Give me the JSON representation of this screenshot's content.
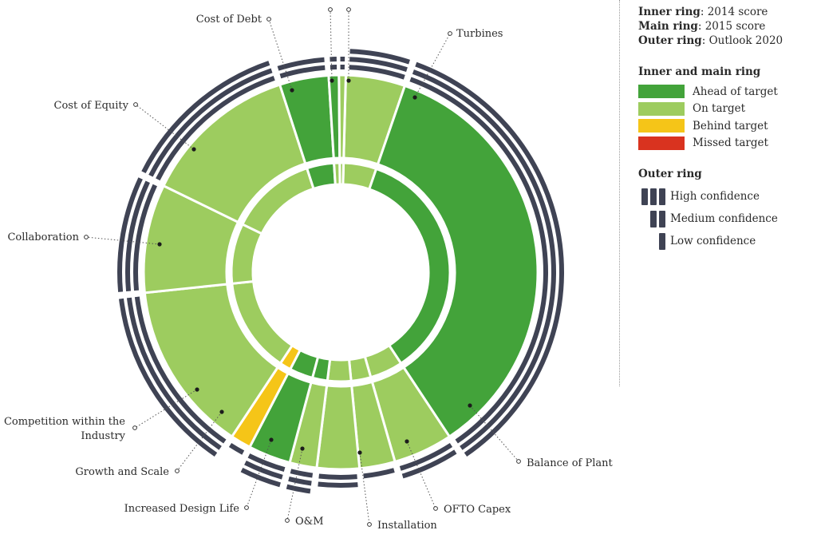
{
  "legend": {
    "ring_keys": [
      {
        "key": "Inner ring",
        "value": "2014 score"
      },
      {
        "key": "Main ring",
        "value": "2015 score"
      },
      {
        "key": "Outer ring",
        "value": "Outlook 2020"
      }
    ],
    "status_heading": "Inner and main ring",
    "status_items": [
      {
        "label": "Ahead of target",
        "color": "#43a33a"
      },
      {
        "label": "On target",
        "color": "#9dcc5f"
      },
      {
        "label": "Behind target",
        "color": "#f5c518"
      },
      {
        "label": "Missed target",
        "color": "#d9331f"
      }
    ],
    "confidence_heading": "Outer ring",
    "confidence_items": [
      {
        "label": "High confidence",
        "bars": 3
      },
      {
        "label": "Medium confidence",
        "bars": 2
      },
      {
        "label": "Low confidence",
        "bars": 1
      }
    ]
  },
  "chart_data": {
    "type": "pie",
    "variant": "three-ring sunburst",
    "orientation": "clockwise from top",
    "colors": {
      "ahead": "#43a33a",
      "on": "#9dcc5f",
      "behind": "#f5c518",
      "missed": "#d9331f",
      "confidence_bar": "#3f4354"
    },
    "segments": [
      {
        "label": "",
        "start_deg": 1.5,
        "end_deg": 19.0,
        "score_2014": "on",
        "score_2015": "on",
        "outlook_2020": 3
      },
      {
        "label": "Turbines",
        "start_deg": 19.0,
        "end_deg": 146.5,
        "score_2014": "ahead",
        "score_2015": "ahead",
        "outlook_2020": 3
      },
      {
        "label": "Balance of Plant",
        "start_deg": 146.5,
        "end_deg": 164.0,
        "score_2014": "on",
        "score_2015": "on",
        "outlook_2020": 2
      },
      {
        "label": "OFTO Capex",
        "start_deg": 164.0,
        "end_deg": 174.5,
        "score_2014": "on",
        "score_2015": "on",
        "outlook_2020": 1
      },
      {
        "label": "Installation",
        "start_deg": 174.5,
        "end_deg": 187.0,
        "score_2014": "on",
        "score_2015": "on",
        "outlook_2020": 2
      },
      {
        "label": "O&M",
        "start_deg": 187.0,
        "end_deg": 195.0,
        "score_2014": "ahead",
        "score_2015": "on",
        "outlook_2020": 3
      },
      {
        "label": "Increased Design Life",
        "start_deg": 195.0,
        "end_deg": 207.5,
        "score_2014": "ahead",
        "score_2015": "ahead",
        "outlook_2020": 3
      },
      {
        "label": "Growth and Scale",
        "start_deg": 207.5,
        "end_deg": 213.5,
        "score_2014": "behind",
        "score_2015": "behind",
        "outlook_2020": 1
      },
      {
        "label": "Competition within the Industry",
        "start_deg": 213.5,
        "end_deg": 264.0,
        "score_2014": "on",
        "score_2015": "on",
        "outlook_2020": 3
      },
      {
        "label": "Collaboration",
        "start_deg": 264.0,
        "end_deg": 296.0,
        "score_2014": "on",
        "score_2015": "on",
        "outlook_2020": 3
      },
      {
        "label": "Cost of Equity",
        "start_deg": 296.0,
        "end_deg": 342.0,
        "score_2014": "on",
        "score_2015": "on",
        "outlook_2020": 3
      },
      {
        "label": "Cost of Debt",
        "start_deg": 342.0,
        "end_deg": 356.5,
        "score_2014": "ahead",
        "score_2015": "ahead",
        "outlook_2020": 2
      },
      {
        "label": "",
        "start_deg": 356.5,
        "end_deg": 359.5,
        "score_2014": "on",
        "score_2015": "ahead",
        "outlook_2020": 2
      },
      {
        "label": "",
        "start_deg": 359.5,
        "end_deg": 361.5,
        "score_2014": "on",
        "score_2015": "on",
        "outlook_2020": 2
      }
    ]
  }
}
